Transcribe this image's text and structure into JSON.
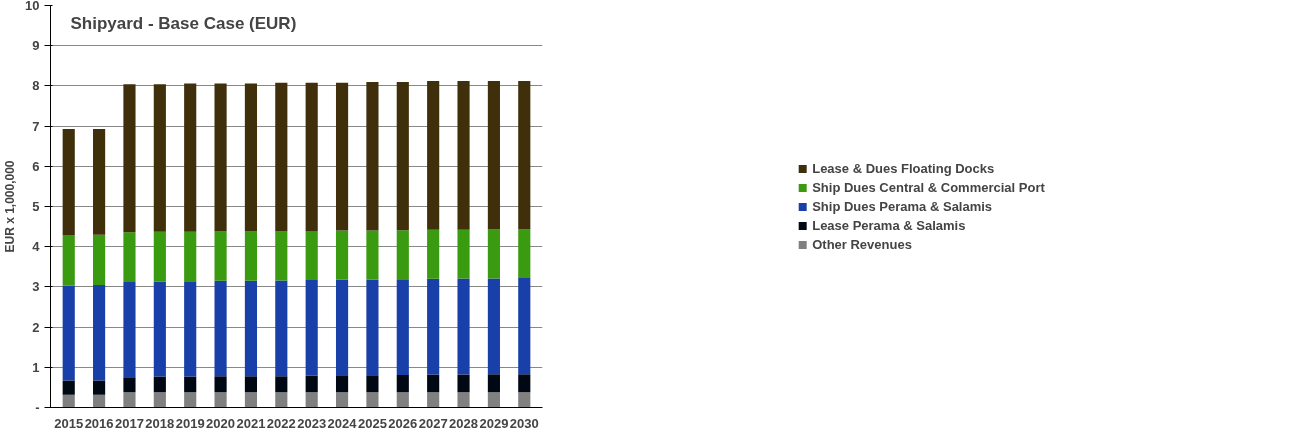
{
  "chart_data": {
    "type": "bar",
    "stacked": true,
    "title": "Shipyard - Base Case (EUR)",
    "ylabel": "EUR x 1,000,000",
    "categories": [
      "2015",
      "2016",
      "2017",
      "2018",
      "2019",
      "2020",
      "2021",
      "2022",
      "2023",
      "2024",
      "2025",
      "2026",
      "2027",
      "2028",
      "2029",
      "2030"
    ],
    "ylim": [
      0,
      10
    ],
    "yticks": [
      {
        "value": 0,
        "label": "-"
      },
      1,
      2,
      3,
      4,
      5,
      6,
      7,
      8,
      9,
      10
    ],
    "grid": "y",
    "legend": "right",
    "series": [
      {
        "name": "Other Revenues",
        "color": "#808080",
        "values": [
          0.32,
          0.32,
          0.38,
          0.38,
          0.38,
          0.38,
          0.38,
          0.38,
          0.38,
          0.38,
          0.38,
          0.38,
          0.38,
          0.38,
          0.38,
          0.38
        ]
      },
      {
        "name": "Lease Perama & Salamis",
        "color": "#000814",
        "values": [
          0.35,
          0.35,
          0.37,
          0.39,
          0.39,
          0.4,
          0.4,
          0.4,
          0.41,
          0.42,
          0.42,
          0.43,
          0.44,
          0.44,
          0.45,
          0.45
        ]
      },
      {
        "name": "Ship Dues Perama & Salamis",
        "color": "#1840a8",
        "values": [
          2.36,
          2.38,
          2.37,
          2.36,
          2.37,
          2.37,
          2.37,
          2.38,
          2.38,
          2.38,
          2.38,
          2.38,
          2.38,
          2.39,
          2.38,
          2.39
        ]
      },
      {
        "name": "Ship Dues Central & Commercial Port",
        "color": "#3a9a10",
        "values": [
          1.26,
          1.25,
          1.24,
          1.24,
          1.23,
          1.23,
          1.23,
          1.22,
          1.22,
          1.22,
          1.22,
          1.22,
          1.22,
          1.21,
          1.22,
          1.21
        ]
      },
      {
        "name": "Lease & Dues Floating Docks",
        "color": "#3f2f0b",
        "values": [
          2.64,
          2.63,
          3.68,
          3.67,
          3.69,
          3.68,
          3.68,
          3.7,
          3.69,
          3.68,
          3.7,
          3.69,
          3.7,
          3.7,
          3.69,
          3.69
        ]
      }
    ]
  }
}
